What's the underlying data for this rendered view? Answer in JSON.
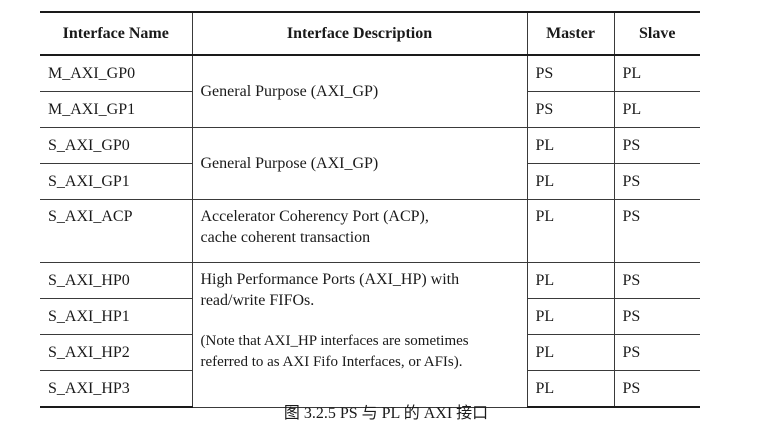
{
  "table": {
    "headers": [
      "Interface Name",
      "Interface Description",
      "Master",
      "Slave"
    ],
    "rows": [
      {
        "name": "M_AXI_GP0",
        "master": "PS",
        "slave": "PL"
      },
      {
        "name": "M_AXI_GP1",
        "master": "PS",
        "slave": "PL"
      },
      {
        "name": "S_AXI_GP0",
        "master": "PL",
        "slave": "PS"
      },
      {
        "name": "S_AXI_GP1",
        "master": "PL",
        "slave": "PS"
      },
      {
        "name": "S_AXI_ACP",
        "master": "PL",
        "slave": "PS"
      },
      {
        "name": "S_AXI_HP0",
        "master": "PL",
        "slave": "PS"
      },
      {
        "name": "S_AXI_HP1",
        "master": "PL",
        "slave": "PS"
      },
      {
        "name": "S_AXI_HP2",
        "master": "PL",
        "slave": "PS"
      },
      {
        "name": "S_AXI_HP3",
        "master": "PL",
        "slave": "PS"
      }
    ],
    "descriptions": {
      "m_axi_gp": "General Purpose (AXI_GP)",
      "s_axi_gp": "General Purpose (AXI_GP)",
      "acp_line1": "Accelerator Coherency Port (ACP),",
      "acp_line2": "cache coherent transaction",
      "hp_line1": "High Performance Ports (AXI_HP) with",
      "hp_line2": "read/write FIFOs.",
      "hp_note_line1": "(Note that AXI_HP interfaces are sometimes",
      "hp_note_line2": "referred to as AXI Fifo Interfaces, or AFIs)."
    }
  },
  "caption": "图 3.2.5 PS 与 PL 的 AXI 接口"
}
